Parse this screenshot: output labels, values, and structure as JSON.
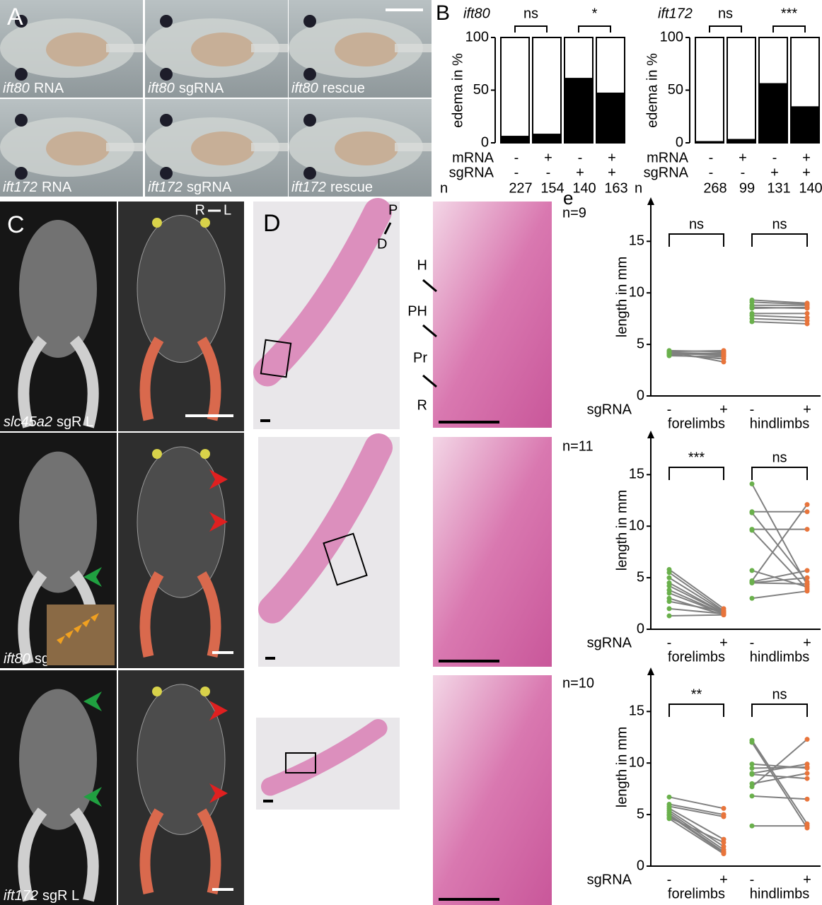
{
  "panel_a": {
    "label": "A",
    "images": [
      {
        "gene": "ift80",
        "suffix": "RNA"
      },
      {
        "gene": "ift80",
        "suffix": "sgRNA"
      },
      {
        "gene": "ift80",
        "suffix": "rescue"
      },
      {
        "gene": "ift172",
        "suffix": "RNA"
      },
      {
        "gene": "ift172",
        "suffix": "sgRNA"
      },
      {
        "gene": "ift172",
        "suffix": "rescue"
      }
    ]
  },
  "panel_b": {
    "label": "B",
    "row_labels": [
      "mRNA",
      "sgRNA",
      "n"
    ],
    "charts": [
      {
        "type": "bar",
        "title": "ift80",
        "y_label": "edema in %",
        "ylim": [
          0,
          100
        ],
        "yticks": [
          0,
          50,
          100
        ],
        "color": "#000000",
        "mrna": [
          "-",
          "+",
          "-",
          "+"
        ],
        "sgrna": [
          "-",
          "-",
          "+",
          "+"
        ],
        "n": [
          227,
          154,
          140,
          163
        ],
        "values": [
          6,
          8,
          61,
          47
        ],
        "significance": [
          "ns",
          "*"
        ]
      },
      {
        "type": "bar",
        "title": "ift172",
        "y_label": "edema in %",
        "ylim": [
          0,
          100
        ],
        "yticks": [
          0,
          50,
          100
        ],
        "color": "#000000",
        "mrna": [
          "-",
          "+",
          "-",
          "+"
        ],
        "sgrna": [
          "-",
          "-",
          "+",
          "+"
        ],
        "n": [
          268,
          99,
          131,
          140
        ],
        "values": [
          1,
          3,
          56,
          34
        ],
        "significance": [
          "ns",
          "***"
        ]
      }
    ]
  },
  "panel_c": {
    "label": "C",
    "orientation": [
      "R",
      "L"
    ],
    "images": [
      {
        "gene": "slc45a2",
        "suffix": "sgR L"
      },
      {
        "gene": "ift80",
        "suffix": "sgR L"
      },
      {
        "gene": "ift172",
        "suffix": "sgR L"
      }
    ]
  },
  "panel_d": {
    "label": "D",
    "ends": [
      "P",
      "D"
    ],
    "zones": [
      "H",
      "PH",
      "Pr",
      "R"
    ]
  },
  "panel_e": {
    "label": "e",
    "charts": [
      {
        "type": "line",
        "n_label": "n=9",
        "y_label": "length in mm",
        "x_label": "sgRNA",
        "signs": [
          "-",
          "+"
        ],
        "ylim": [
          0,
          19
        ],
        "yticks": [
          0,
          5,
          10,
          15
        ],
        "minus_color": "#6ab04c",
        "plus_color": "#e8743b",
        "line_color": "#808080",
        "groups": [
          {
            "name": "forelimbs",
            "significance": "ns",
            "minus": [
              4.4,
              4.3,
              4.2,
              4.1,
              4.0,
              4.2,
              3.9,
              4.0,
              4.3
            ],
            "plus": [
              4.3,
              4.4,
              4.1,
              4.0,
              4.2,
              3.9,
              3.8,
              3.6,
              3.3
            ]
          },
          {
            "name": "hindlimbs",
            "significance": "ns",
            "minus": [
              9.3,
              9.1,
              8.8,
              8.6,
              8.5,
              8.0,
              7.8,
              7.5,
              7.2
            ],
            "plus": [
              9.0,
              8.9,
              8.8,
              8.5,
              8.6,
              8.0,
              7.6,
              7.3,
              7.0
            ]
          }
        ]
      },
      {
        "type": "line",
        "n_label": "n=11",
        "y_label": "length in mm",
        "x_label": "sgRNA",
        "signs": [
          "-",
          "+"
        ],
        "ylim": [
          0,
          19
        ],
        "yticks": [
          0,
          5,
          10,
          15
        ],
        "minus_color": "#6ab04c",
        "plus_color": "#e8743b",
        "line_color": "#808080",
        "groups": [
          {
            "name": "forelimbs",
            "significance": "***",
            "minus": [
              5.8,
              5.5,
              5.0,
              4.5,
              4.2,
              3.8,
              3.5,
              3.0,
              2.7,
              2.0,
              1.3
            ],
            "plus": [
              2.0,
              1.8,
              1.7,
              1.6,
              1.6,
              1.5,
              1.5,
              1.4,
              1.7,
              1.5,
              1.4
            ]
          },
          {
            "name": "hindlimbs",
            "significance": "ns",
            "minus": [
              14.1,
              11.4,
              11.3,
              9.7,
              9.6,
              5.7,
              4.7,
              4.6,
              4.5,
              4.5,
              3.0
            ],
            "plus": [
              4.3,
              11.4,
              4.6,
              9.7,
              3.9,
              4.1,
              12.1,
              5.7,
              4.4,
              5.0,
              3.7
            ]
          }
        ]
      },
      {
        "type": "line",
        "n_label": "n=10",
        "y_label": "length in mm",
        "x_label": "sgRNA",
        "signs": [
          "-",
          "+"
        ],
        "ylim": [
          0,
          19
        ],
        "yticks": [
          0,
          5,
          10,
          15
        ],
        "minus_color": "#6ab04c",
        "plus_color": "#e8743b",
        "line_color": "#808080",
        "groups": [
          {
            "name": "forelimbs",
            "significance": "**",
            "minus": [
              6.7,
              6.0,
              5.8,
              5.6,
              5.4,
              5.2,
              5.0,
              4.9,
              4.7,
              4.6
            ],
            "plus": [
              5.6,
              5.0,
              4.8,
              2.6,
              1.9,
              1.6,
              1.4,
              1.3,
              2.3,
              1.2
            ]
          },
          {
            "name": "hindlimbs",
            "significance": "ns",
            "minus": [
              12.2,
              12.0,
              9.9,
              9.5,
              9.0,
              8.9,
              8.0,
              7.7,
              6.8,
              3.9
            ],
            "plus": [
              4.1,
              3.7,
              9.5,
              9.6,
              9.9,
              8.5,
              9.0,
              12.3,
              6.5,
              3.9
            ]
          }
        ]
      }
    ]
  }
}
